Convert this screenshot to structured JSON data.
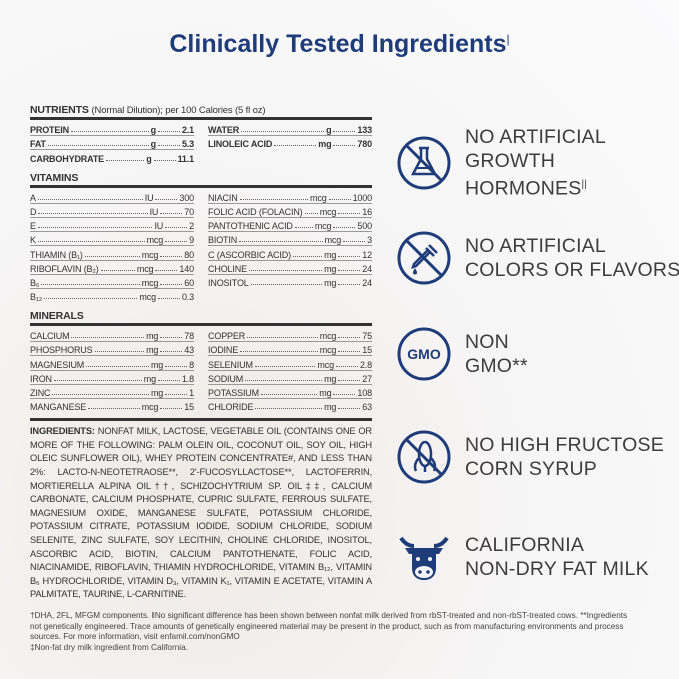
{
  "header": {
    "title": "Clinically Tested Ingredients",
    "title_mark": "|"
  },
  "nutrients": {
    "heading": "NUTRIENTS",
    "subheading": "(Normal Dilution); per 100 Calories (5 fl oz)",
    "left": [
      [
        "PROTEIN",
        "g",
        "2.1"
      ],
      [
        "FAT",
        "g",
        "5.3"
      ],
      [
        "CARBOHYDRATE",
        "g",
        "11.1"
      ]
    ],
    "right": [
      [
        "WATER",
        "g",
        "133"
      ],
      [
        "LINOLEIC ACID",
        "mg",
        "780"
      ]
    ]
  },
  "vitamins": {
    "heading": "VITAMINS",
    "left": [
      [
        "A",
        "IU",
        "300"
      ],
      [
        "D",
        "IU",
        "70"
      ],
      [
        "E",
        "IU",
        "2"
      ],
      [
        "K",
        "mcg",
        "9"
      ],
      [
        "THIAMIN (B₁)",
        "mcg",
        "80"
      ],
      [
        "RIBOFLAVIN (B₂)",
        "mcg",
        "140"
      ],
      [
        "B₆",
        "mcg",
        "60"
      ],
      [
        "B₁₂",
        "mcg",
        "0.3"
      ]
    ],
    "right": [
      [
        "NIACIN",
        "mcg",
        "1000"
      ],
      [
        "FOLIC ACID (FOLACIN)",
        "mcg",
        "16"
      ],
      [
        "PANTOTHENIC ACID",
        "mcg",
        "500"
      ],
      [
        "BIOTIN",
        "mcg",
        "3"
      ],
      [
        "C (ASCORBIC ACID)",
        "mg",
        "12"
      ],
      [
        "CHOLINE",
        "mg",
        "24"
      ],
      [
        "INOSITOL",
        "mg",
        "24"
      ]
    ]
  },
  "minerals": {
    "heading": "MINERALS",
    "left": [
      [
        "CALCIUM",
        "mg",
        "78"
      ],
      [
        "PHOSPHORUS",
        "mg",
        "43"
      ],
      [
        "MAGNESIUM",
        "mg",
        "8"
      ],
      [
        "IRON",
        "mg",
        "1.8"
      ],
      [
        "ZINC",
        "mg",
        "1"
      ],
      [
        "MANGANESE",
        "mcg",
        "15"
      ]
    ],
    "right": [
      [
        "COPPER",
        "mcg",
        "75"
      ],
      [
        "IODINE",
        "mcg",
        "15"
      ],
      [
        "SELENIUM",
        "mcg",
        "2.8"
      ],
      [
        "SODIUM",
        "mg",
        "27"
      ],
      [
        "POTASSIUM",
        "mg",
        "108"
      ],
      [
        "CHLORIDE",
        "mg",
        "63"
      ]
    ]
  },
  "ingredients": {
    "label": "INGREDIENTS:",
    "text": "NONFAT MILK, LACTOSE, VEGETABLE OIL (CONTAINS ONE OR MORE OF THE FOLLOWING: PALM OLEIN OIL, COCONUT OIL, SOY OIL, HIGH OLEIC SUNFLOWER OIL), WHEY PROTEIN CONCENTRATE#, AND LESS THAN 2%: LACTO-N-NEOTETRAOSE**, 2'-FUCOSYLLACTOSE**, LACTOFERRIN, MORTIERELLA ALPINA OIL††, SCHIZOCHYTRIUM SP. OIL‡‡, CALCIUM CARBONATE, CALCIUM PHOSPHATE, CUPRIC SULFATE, FERROUS SULFATE, MAGNESIUM OXIDE, MANGANESE SULFATE, POTASSIUM CHLORIDE, POTASSIUM CITRATE, POTASSIUM IODIDE, SODIUM CHLORIDE, SODIUM SELENITE, ZINC SULFATE, SOY LECITHIN, CHOLINE CHLORIDE, INOSITOL, ASCORBIC ACID, BIOTIN, CALCIUM PANTOTHENATE, FOLIC ACID, NIACINAMIDE, RIBOFLAVIN, THIAMIN HYDROCHLORIDE, VITAMIN B₁₂, VITAMIN B₆ HYDROCHLORIDE, VITAMIN D₃, VITAMIN K₁, VITAMIN E ACETATE, VITAMIN A PALMITATE, TAURINE, L-CARNITINE."
  },
  "footnotes": [
    "†DHA, 2FL, MFGM components. ǁNo significant difference has been shown between nonfat milk derived from rbST-treated and non-rbST-treated cows. **Ingredients not genetically engineered. Trace amounts of genetically engineered material may be present in the product, such as from manufacturing environments and process sources. For more information, visit enfamil.com/nonGMO",
    "‡Non-fat dry milk ingredient from California."
  ],
  "claims": [
    {
      "lines": [
        "NO ARTIFICIAL",
        "GROWTH",
        "HORMONES"
      ],
      "mark": "||"
    },
    {
      "lines": [
        "NO ARTIFICIAL",
        "COLORS OR FLAVORS"
      ]
    },
    {
      "lines": [
        "NON",
        "GMO**"
      ],
      "icon_text": "GMO"
    },
    {
      "lines": [
        "NO HIGH FRUCTOSE",
        "CORN SYRUP"
      ]
    },
    {
      "lines": [
        "CALIFORNIA",
        "NON-DRY FAT MILK"
      ]
    }
  ]
}
